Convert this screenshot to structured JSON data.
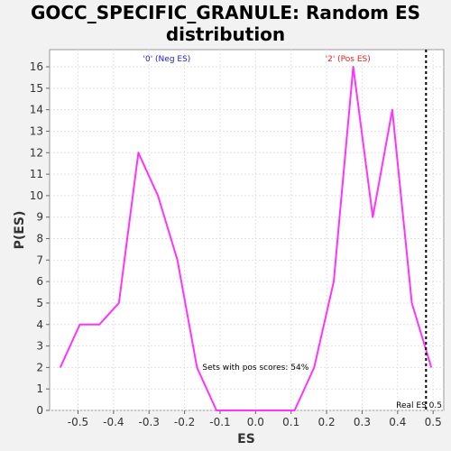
{
  "chart_data": {
    "type": "line",
    "title_line1": "GOCC_SPECIFIC_GRANULE: Random ES",
    "title_line2": "distribution",
    "xlabel": "ES",
    "ylabel": "P(ES)",
    "xlim": [
      -0.58,
      0.53
    ],
    "ylim": [
      0,
      16.8
    ],
    "xticks": [
      -0.5,
      -0.4,
      -0.3,
      -0.2,
      -0.1,
      0.0,
      0.1,
      0.2,
      0.3,
      0.4,
      0.5
    ],
    "xtick_labels": [
      "-0.5",
      "-0.4",
      "-0.3",
      "-0.2",
      "-0.1",
      "0.0",
      "0.1",
      "0.2",
      "0.3",
      "0.4",
      "0.5"
    ],
    "yticks": [
      0,
      1,
      2,
      3,
      4,
      5,
      6,
      7,
      8,
      9,
      10,
      11,
      12,
      13,
      14,
      15,
      16
    ],
    "ytick_labels": [
      "0",
      "1",
      "2",
      "3",
      "4",
      "5",
      "6",
      "7",
      "8",
      "9",
      "10",
      "11",
      "12",
      "13",
      "14",
      "15",
      "16"
    ],
    "grid": true,
    "series": [
      {
        "color": "#ff33ff",
        "x": [
          -0.55,
          -0.495,
          -0.44,
          -0.385,
          -0.33,
          -0.275,
          -0.22,
          -0.165,
          -0.11,
          -0.055,
          0.0,
          0.055,
          0.11,
          0.165,
          0.22,
          0.275,
          0.33,
          0.385,
          0.44,
          0.495
        ],
        "y": [
          2,
          4,
          4,
          5,
          12,
          10,
          7,
          2,
          0,
          0,
          0,
          0,
          0,
          2,
          6,
          16,
          9,
          14,
          5,
          2
        ]
      }
    ],
    "real_es": 0.48,
    "annotations": {
      "neg_label": "'0' (Neg ES)",
      "neg_color": "#2222cc",
      "pos_label": "'2' (Pos ES)",
      "pos_color": "#dd2222",
      "pos_scores": "Sets with pos scores: 54%",
      "real_es_label": "Real ES 0.5"
    }
  }
}
